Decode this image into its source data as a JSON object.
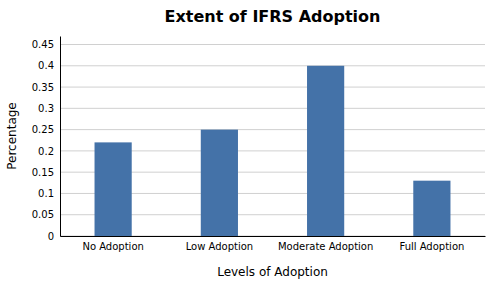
{
  "chart_data": {
    "type": "bar",
    "title": "Extent of IFRS Adoption",
    "xlabel": "Levels of Adoption",
    "ylabel": "Percentage",
    "categories": [
      "No Adoption",
      "Low Adoption",
      "Moderate Adoption",
      "Full Adoption"
    ],
    "values": [
      0.22,
      0.25,
      0.4,
      0.13
    ],
    "color": "#4472a8",
    "ylim": [
      0,
      0.47
    ],
    "yticks": [
      0,
      0.05,
      0.1,
      0.15,
      0.2,
      0.25,
      0.3,
      0.35,
      0.4,
      0.45
    ],
    "grid": true
  }
}
